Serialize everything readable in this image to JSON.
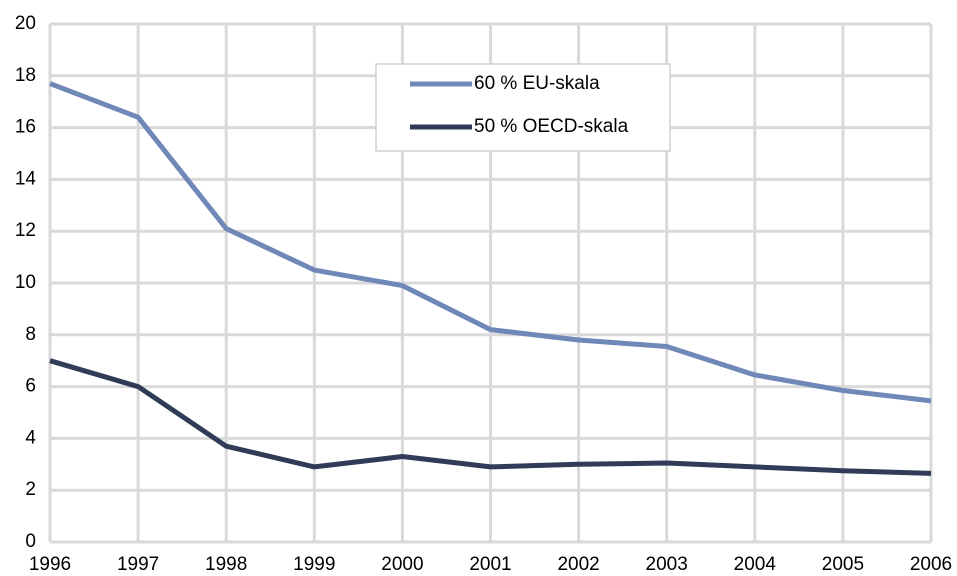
{
  "chart_data": {
    "type": "line",
    "x": [
      1996,
      1997,
      1998,
      1999,
      2000,
      2001,
      2002,
      2003,
      2004,
      2005,
      2006
    ],
    "xlim": [
      1996,
      2006
    ],
    "xticks": [
      1996,
      1997,
      1998,
      1999,
      2000,
      2001,
      2002,
      2003,
      2004,
      2005,
      2006
    ],
    "ylim": [
      0,
      20
    ],
    "yticks": [
      0,
      2,
      4,
      6,
      8,
      10,
      12,
      14,
      16,
      18,
      20
    ],
    "grid": true,
    "legend": "top-center",
    "series": [
      {
        "name": "60 % EU-skala",
        "color": "#7088b8",
        "values": [
          17.7,
          16.4,
          12.1,
          10.5,
          9.9,
          8.2,
          7.8,
          7.55,
          6.45,
          5.85,
          5.45
        ]
      },
      {
        "name": "50 % OECD-skala",
        "color": "#2f3b57",
        "values": [
          7.0,
          6.0,
          3.7,
          2.9,
          3.3,
          2.9,
          3.0,
          3.05,
          2.9,
          2.75,
          2.65
        ]
      }
    ]
  }
}
